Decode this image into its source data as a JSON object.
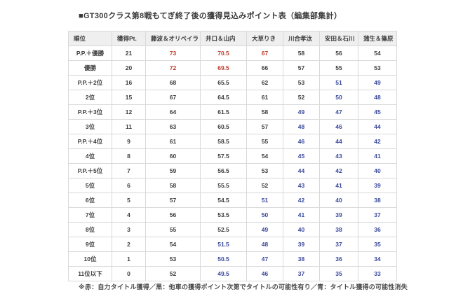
{
  "page": {
    "title": "■GT300クラス第8戦もてぎ終了後の獲得見込みポイント表（編集部集計）",
    "footnote": "※赤：自力タイトル獲得／黒：他車の獲得ポイント次第でタイトルの可能性有り／青：タイトル獲得の可能性消失"
  },
  "colors": {
    "red": "#bd3c2c",
    "black": "#3d3d3d",
    "blue": "#39499b",
    "header_bg": "#efefef",
    "border": "#d9d9d9"
  },
  "chart_data": {
    "type": "table",
    "title": "GT300クラス第8戦もてぎ終了後の獲得見込みポイント表（編集部集計）",
    "legend": {
      "red": "自力タイトル獲得",
      "black": "他車の獲得ポイント次第でタイトルの可能性有り",
      "blue": "タイトル獲得の可能性消失"
    },
    "headers": [
      "順位",
      "獲得Pt.",
      "藤波＆オリベイラ",
      "井口＆山内",
      "大草りき",
      "川合孝汰",
      "安田＆石川",
      "蒲生＆篠原"
    ],
    "rows": [
      {
        "rank": "P.P.＋優勝",
        "pt": "21",
        "cells": [
          {
            "v": "73",
            "c": "red"
          },
          {
            "v": "70.5",
            "c": "red"
          },
          {
            "v": "67",
            "c": "red"
          },
          {
            "v": "58",
            "c": "black"
          },
          {
            "v": "56",
            "c": "black"
          },
          {
            "v": "54",
            "c": "black"
          }
        ]
      },
      {
        "rank": "優勝",
        "pt": "20",
        "cells": [
          {
            "v": "72",
            "c": "red"
          },
          {
            "v": "69.5",
            "c": "red"
          },
          {
            "v": "66",
            "c": "black"
          },
          {
            "v": "57",
            "c": "black"
          },
          {
            "v": "55",
            "c": "black"
          },
          {
            "v": "53",
            "c": "black"
          }
        ]
      },
      {
        "rank": "P.P.＋2位",
        "pt": "16",
        "cells": [
          {
            "v": "68",
            "c": "black"
          },
          {
            "v": "65.5",
            "c": "black"
          },
          {
            "v": "62",
            "c": "black"
          },
          {
            "v": "53",
            "c": "black"
          },
          {
            "v": "51",
            "c": "blue"
          },
          {
            "v": "49",
            "c": "blue"
          }
        ]
      },
      {
        "rank": "2位",
        "pt": "15",
        "cells": [
          {
            "v": "67",
            "c": "black"
          },
          {
            "v": "64.5",
            "c": "black"
          },
          {
            "v": "61",
            "c": "black"
          },
          {
            "v": "52",
            "c": "black"
          },
          {
            "v": "50",
            "c": "blue"
          },
          {
            "v": "48",
            "c": "blue"
          }
        ]
      },
      {
        "rank": "P.P.＋3位",
        "pt": "12",
        "cells": [
          {
            "v": "64",
            "c": "black"
          },
          {
            "v": "61.5",
            "c": "black"
          },
          {
            "v": "58",
            "c": "black"
          },
          {
            "v": "49",
            "c": "blue"
          },
          {
            "v": "47",
            "c": "blue"
          },
          {
            "v": "45",
            "c": "blue"
          }
        ]
      },
      {
        "rank": "3位",
        "pt": "11",
        "cells": [
          {
            "v": "63",
            "c": "black"
          },
          {
            "v": "60.5",
            "c": "black"
          },
          {
            "v": "57",
            "c": "black"
          },
          {
            "v": "48",
            "c": "blue"
          },
          {
            "v": "46",
            "c": "blue"
          },
          {
            "v": "44",
            "c": "blue"
          }
        ]
      },
      {
        "rank": "P.P.＋4位",
        "pt": "9",
        "cells": [
          {
            "v": "61",
            "c": "black"
          },
          {
            "v": "58.5",
            "c": "black"
          },
          {
            "v": "55",
            "c": "black"
          },
          {
            "v": "46",
            "c": "blue"
          },
          {
            "v": "44",
            "c": "blue"
          },
          {
            "v": "42",
            "c": "blue"
          }
        ]
      },
      {
        "rank": "4位",
        "pt": "8",
        "cells": [
          {
            "v": "60",
            "c": "black"
          },
          {
            "v": "57.5",
            "c": "black"
          },
          {
            "v": "54",
            "c": "black"
          },
          {
            "v": "45",
            "c": "blue"
          },
          {
            "v": "43",
            "c": "blue"
          },
          {
            "v": "41",
            "c": "blue"
          }
        ]
      },
      {
        "rank": "P.P.＋5位",
        "pt": "7",
        "cells": [
          {
            "v": "59",
            "c": "black"
          },
          {
            "v": "56.5",
            "c": "black"
          },
          {
            "v": "53",
            "c": "black"
          },
          {
            "v": "44",
            "c": "blue"
          },
          {
            "v": "42",
            "c": "blue"
          },
          {
            "v": "40",
            "c": "blue"
          }
        ]
      },
      {
        "rank": "5位",
        "pt": "6",
        "cells": [
          {
            "v": "58",
            "c": "black"
          },
          {
            "v": "55.5",
            "c": "black"
          },
          {
            "v": "52",
            "c": "black"
          },
          {
            "v": "43",
            "c": "blue"
          },
          {
            "v": "41",
            "c": "blue"
          },
          {
            "v": "39",
            "c": "blue"
          }
        ]
      },
      {
        "rank": "6位",
        "pt": "5",
        "cells": [
          {
            "v": "57",
            "c": "black"
          },
          {
            "v": "54.5",
            "c": "black"
          },
          {
            "v": "51",
            "c": "blue"
          },
          {
            "v": "42",
            "c": "blue"
          },
          {
            "v": "40",
            "c": "blue"
          },
          {
            "v": "38",
            "c": "blue"
          }
        ]
      },
      {
        "rank": "7位",
        "pt": "4",
        "cells": [
          {
            "v": "56",
            "c": "black"
          },
          {
            "v": "53.5",
            "c": "black"
          },
          {
            "v": "50",
            "c": "blue"
          },
          {
            "v": "41",
            "c": "blue"
          },
          {
            "v": "39",
            "c": "blue"
          },
          {
            "v": "37",
            "c": "blue"
          }
        ]
      },
      {
        "rank": "8位",
        "pt": "3",
        "cells": [
          {
            "v": "55",
            "c": "black"
          },
          {
            "v": "52.5",
            "c": "black"
          },
          {
            "v": "49",
            "c": "blue"
          },
          {
            "v": "40",
            "c": "blue"
          },
          {
            "v": "38",
            "c": "blue"
          },
          {
            "v": "36",
            "c": "blue"
          }
        ]
      },
      {
        "rank": "9位",
        "pt": "2",
        "cells": [
          {
            "v": "54",
            "c": "black"
          },
          {
            "v": "51.5",
            "c": "blue"
          },
          {
            "v": "48",
            "c": "blue"
          },
          {
            "v": "39",
            "c": "blue"
          },
          {
            "v": "37",
            "c": "blue"
          },
          {
            "v": "35",
            "c": "blue"
          }
        ]
      },
      {
        "rank": "10位",
        "pt": "1",
        "cells": [
          {
            "v": "53",
            "c": "black"
          },
          {
            "v": "50.5",
            "c": "blue"
          },
          {
            "v": "47",
            "c": "blue"
          },
          {
            "v": "38",
            "c": "blue"
          },
          {
            "v": "36",
            "c": "blue"
          },
          {
            "v": "34",
            "c": "blue"
          }
        ]
      },
      {
        "rank": "11位以下",
        "pt": "0",
        "cells": [
          {
            "v": "52",
            "c": "black"
          },
          {
            "v": "49.5",
            "c": "blue"
          },
          {
            "v": "46",
            "c": "blue"
          },
          {
            "v": "37",
            "c": "blue"
          },
          {
            "v": "35",
            "c": "blue"
          },
          {
            "v": "33",
            "c": "blue"
          }
        ]
      }
    ]
  }
}
